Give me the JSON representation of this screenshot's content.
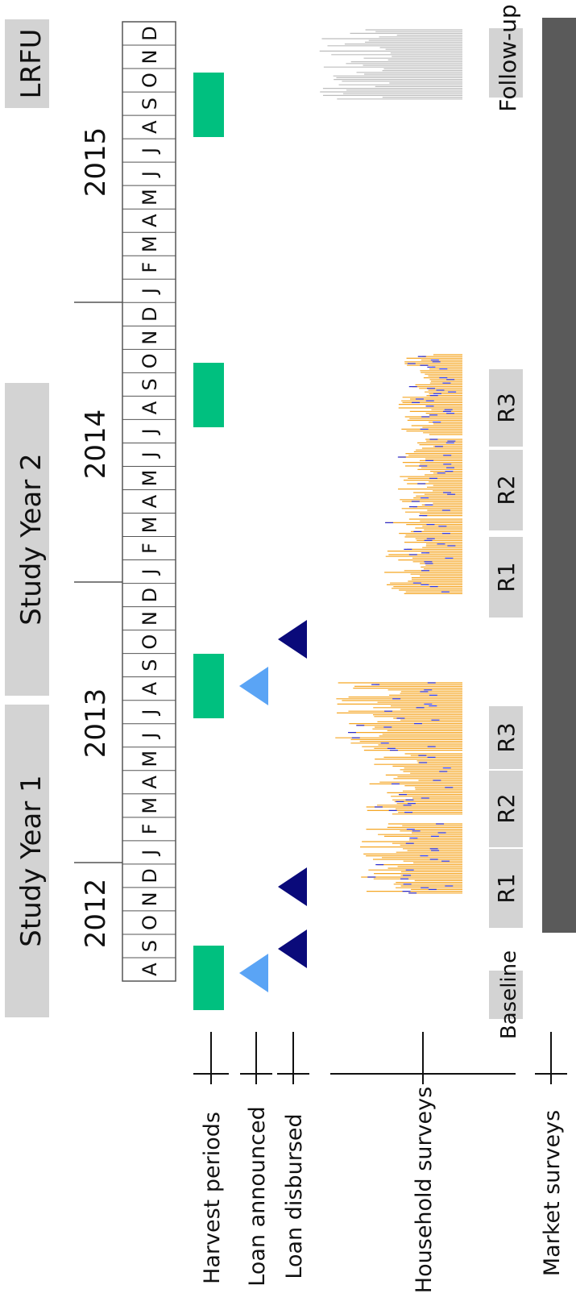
{
  "banners": {
    "lrfu": "LRFU",
    "study_year_2": "Study Year 2",
    "study_year_1": "Study Year 1"
  },
  "years": [
    "2012",
    "2013",
    "2014",
    "2015"
  ],
  "months": [
    "A",
    "S",
    "O",
    "N",
    "D",
    "J",
    "F",
    "M",
    "A",
    "M",
    "J",
    "J",
    "A",
    "S",
    "O",
    "N",
    "D",
    "J",
    "F",
    "M",
    "A",
    "M",
    "J",
    "J",
    "A",
    "S",
    "O",
    "N",
    "D",
    "J",
    "F",
    "M",
    "A",
    "M",
    "J",
    "J",
    "A",
    "S",
    "O",
    "N",
    "D"
  ],
  "row_labels": {
    "harvest": "Harvest periods",
    "loan_announced": "Loan announced",
    "loan_disbursed": "Loan disbursed",
    "household": "Household surveys",
    "market": "Market surveys"
  },
  "survey_rounds": {
    "baseline": "Baseline",
    "y1_r1": "R1",
    "y1_r2": "R2",
    "y1_r3": "R3",
    "y2_r1": "R1",
    "y2_r2": "R2",
    "y2_r3": "R3",
    "follow_up": "Follow-up"
  },
  "colors": {
    "harvest": "#00c07f",
    "loan_announced": "#5aa4f5",
    "loan_disbursed": "#0a0a7a",
    "survey_orange": "#f5a623",
    "survey_blue": "#2a2ad0",
    "follow_up_bars": "#bdbdbd",
    "banner": "#d3d3d3",
    "market_bar": "#5a5a5a"
  }
}
